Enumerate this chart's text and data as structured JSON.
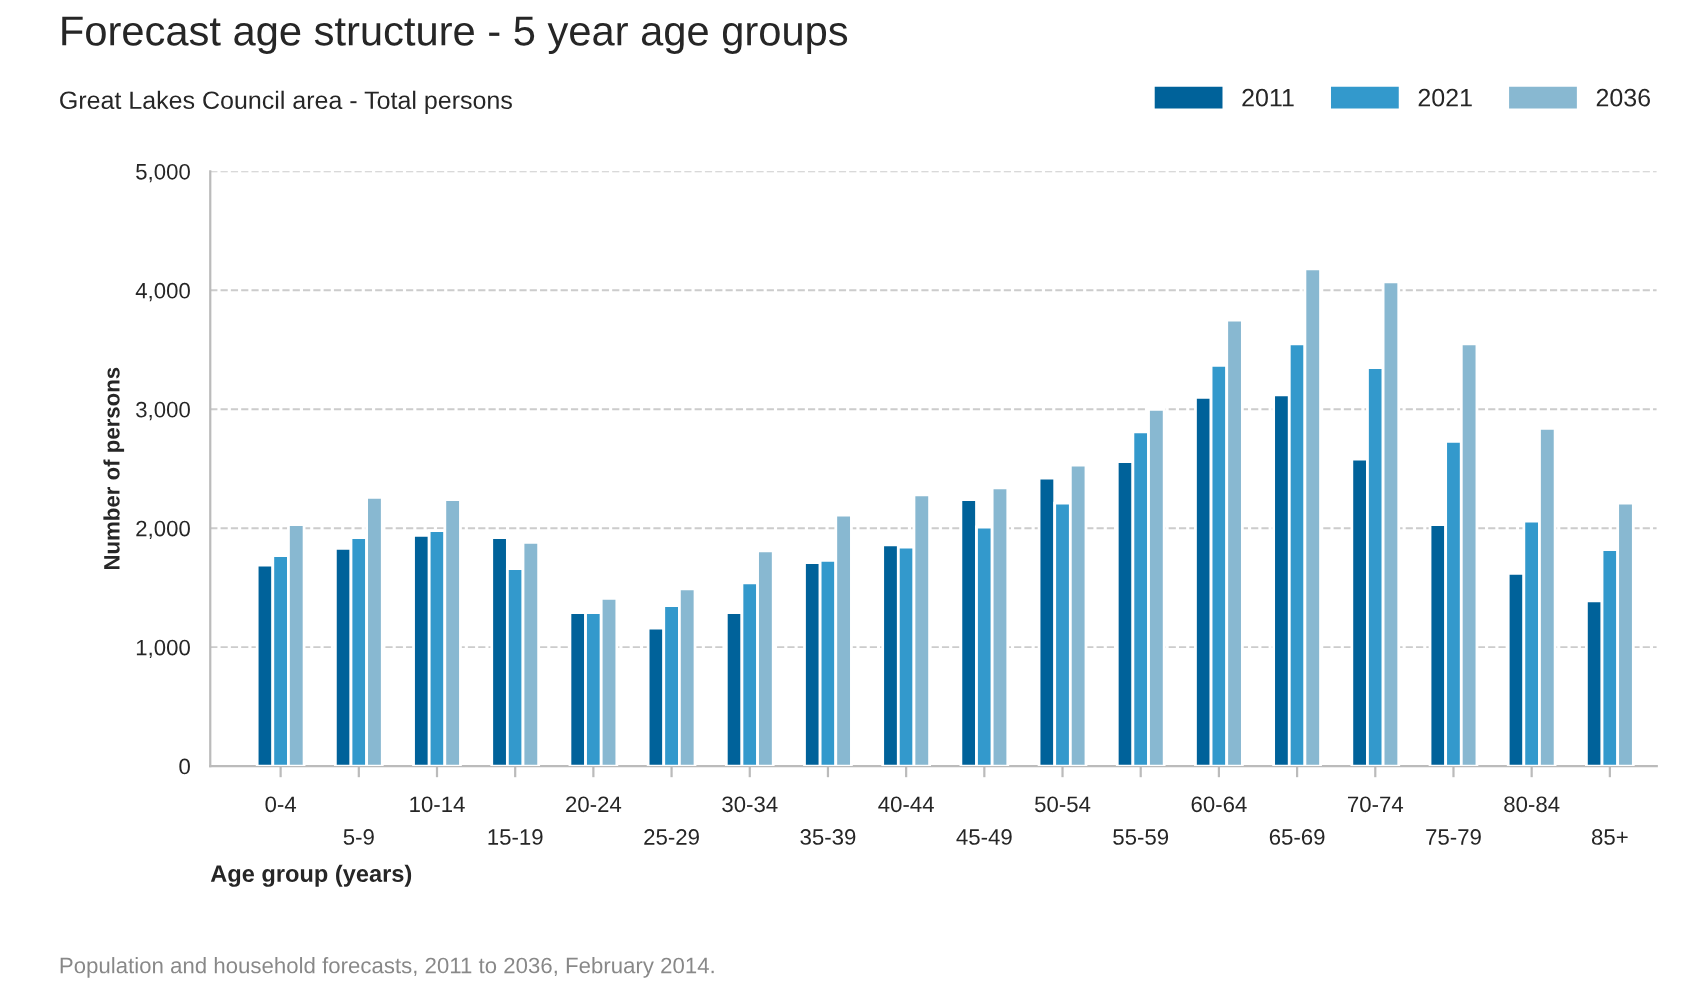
{
  "chart_data": {
    "type": "bar",
    "title": "Forecast age structure - 5 year age groups",
    "subtitle": "Great Lakes Council area - Total persons",
    "xlabel": "Age group (years)",
    "ylabel": "Number of persons",
    "categories": [
      "0-4",
      "5-9",
      "10-14",
      "15-19",
      "20-24",
      "25-29",
      "30-34",
      "35-39",
      "40-44",
      "45-49",
      "50-54",
      "55-59",
      "60-64",
      "65-69",
      "70-74",
      "75-79",
      "80-84",
      "85+"
    ],
    "series": [
      {
        "name": "2011",
        "color": "#00629a",
        "values": [
          1690,
          1830,
          1940,
          1920,
          1290,
          1160,
          1290,
          1710,
          1860,
          2240,
          2420,
          2560,
          3100,
          3120,
          2580,
          2030,
          1620,
          1390
        ]
      },
      {
        "name": "2021",
        "color": "#3399cc",
        "values": [
          1770,
          1920,
          1980,
          1660,
          1290,
          1350,
          1540,
          1730,
          1840,
          2010,
          2210,
          2810,
          3370,
          3550,
          3350,
          2730,
          2060,
          1820
        ]
      },
      {
        "name": "2036",
        "color": "#88b8d1",
        "values": [
          2030,
          2260,
          2240,
          1880,
          1410,
          1490,
          1810,
          2110,
          2280,
          2340,
          2530,
          3000,
          3750,
          4180,
          4070,
          3550,
          2840,
          2210
        ]
      }
    ],
    "ylim": [
      0,
      5000
    ],
    "yticks": [
      {
        "value": 0,
        "label": "0"
      },
      {
        "value": 1000,
        "label": "1,000"
      },
      {
        "value": 2000,
        "label": "2,000"
      },
      {
        "value": 3000,
        "label": "3,000"
      },
      {
        "value": 4000,
        "label": "4,000"
      },
      {
        "value": 5000,
        "label": "5,000"
      }
    ],
    "grid": "y",
    "legend": "top right",
    "annotations": [
      "Population and household forecasts, 2011 to 2036, February 2014."
    ]
  }
}
